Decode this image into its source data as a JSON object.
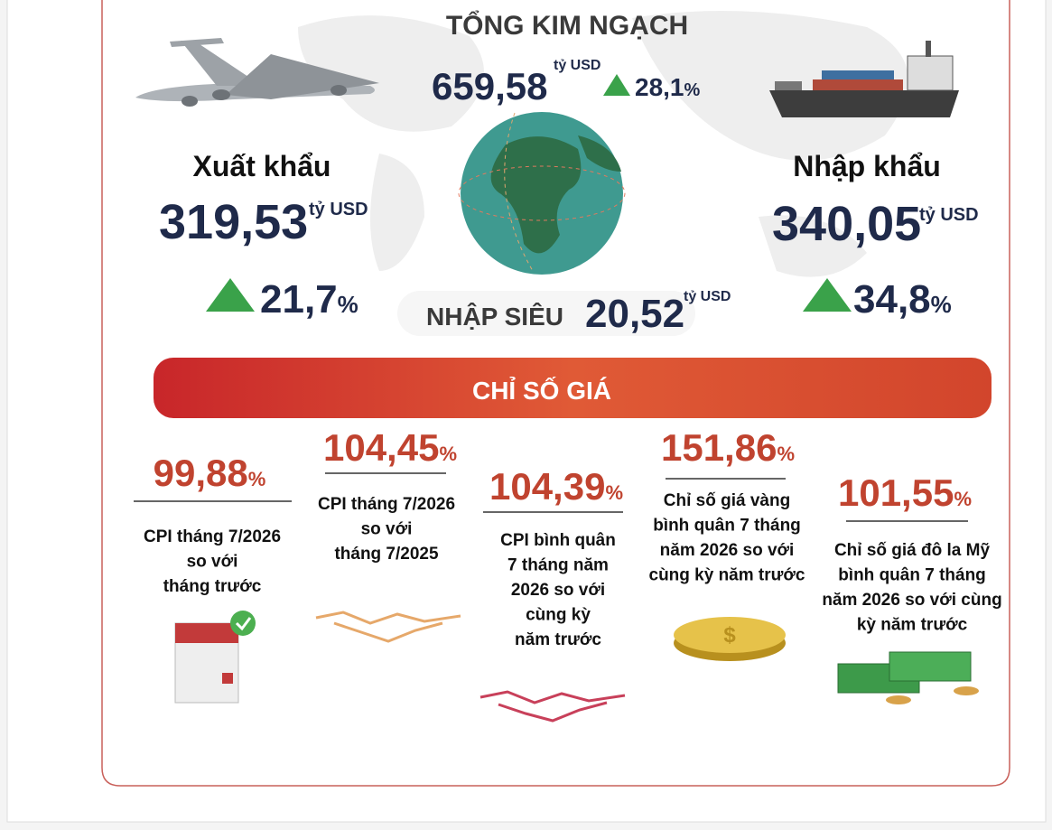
{
  "trade": {
    "total": {
      "title": "TỔNG KIM NGẠCH",
      "value": "659,58",
      "unit": "tỷ USD",
      "change": "28,1",
      "change_unit": "%"
    },
    "export": {
      "title": "Xuất khẩu",
      "value": "319,53",
      "unit": "tỷ USD",
      "change": "21,7",
      "change_unit": "%"
    },
    "import": {
      "title": "Nhập khẩu",
      "value": "340,05",
      "unit": "tỷ USD",
      "change": "34,8",
      "change_unit": "%"
    },
    "deficit": {
      "title": "NHẬP SIÊU",
      "value": "20,52",
      "unit": "tỷ USD"
    }
  },
  "prices": {
    "title": "CHỈ SỐ GIÁ",
    "items": [
      {
        "value": "99,88",
        "unit": "%",
        "label": [
          "CPI tháng 7/2026",
          "so với",
          "tháng trước"
        ]
      },
      {
        "value": "104,45",
        "unit": "%",
        "label": [
          "CPI tháng 7/2026",
          "so với",
          "tháng 7/2025"
        ]
      },
      {
        "value": "104,39",
        "unit": "%",
        "label": [
          "CPI bình quân",
          "7 tháng năm",
          "2026 so với",
          "cùng kỳ",
          "năm trước"
        ]
      },
      {
        "value": "151,86",
        "unit": "%",
        "label": [
          "Chỉ số giá vàng",
          "bình quân 7 tháng",
          "năm 2026 so với",
          "cùng kỳ năm trước"
        ]
      },
      {
        "value": "101,55",
        "unit": "%",
        "label": [
          "Chỉ số giá đô la Mỹ",
          "bình quân 7 tháng",
          "năm 2026 so với cùng",
          "kỳ năm trước"
        ]
      }
    ]
  }
}
